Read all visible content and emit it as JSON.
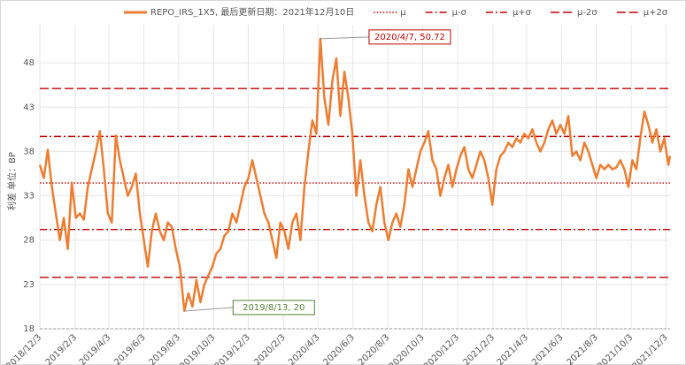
{
  "chart_data": {
    "type": "line",
    "y_label": "利差 单位：BP",
    "xlim": [
      "2018/12/3",
      "2021/12/10"
    ],
    "xticks": [
      "2018/12/3",
      "2019/2/3",
      "2019/4/3",
      "2019/6/3",
      "2019/8/3",
      "2019/10/3",
      "2019/12/3",
      "2020/2/3",
      "2020/4/3",
      "2020/6/3",
      "2020/8/3",
      "2020/10/3",
      "2020/12/3",
      "2021/2/3",
      "2021/4/3",
      "2021/6/3",
      "2021/8/3",
      "2021/10/3",
      "2021/12/3"
    ],
    "ylim": [
      18,
      52.3
    ],
    "yticks": [
      18,
      23,
      28,
      33,
      38,
      43,
      48
    ],
    "grid": true,
    "x": [
      "2018/12/3",
      "2018/12/10",
      "2018/12/17",
      "2018/12/24",
      "2018/12/31",
      "2019/1/7",
      "2019/1/14",
      "2019/1/21",
      "2019/1/28",
      "2019/2/4",
      "2019/2/11",
      "2019/2/18",
      "2019/2/25",
      "2019/3/4",
      "2019/3/11",
      "2019/3/18",
      "2019/3/25",
      "2019/4/1",
      "2019/4/8",
      "2019/4/15",
      "2019/4/22",
      "2019/4/29",
      "2019/5/6",
      "2019/5/13",
      "2019/5/20",
      "2019/5/27",
      "2019/6/3",
      "2019/6/10",
      "2019/6/17",
      "2019/6/24",
      "2019/7/1",
      "2019/7/8",
      "2019/7/15",
      "2019/7/22",
      "2019/7/29",
      "2019/8/5",
      "2019/8/13",
      "2019/8/20",
      "2019/8/27",
      "2019/9/3",
      "2019/9/10",
      "2019/9/17",
      "2019/9/24",
      "2019/10/1",
      "2019/10/8",
      "2019/10/15",
      "2019/10/22",
      "2019/10/29",
      "2019/11/5",
      "2019/11/12",
      "2019/11/19",
      "2019/11/26",
      "2019/12/3",
      "2019/12/10",
      "2019/12/17",
      "2019/12/24",
      "2019/12/31",
      "2020/1/7",
      "2020/1/14",
      "2020/1/21",
      "2020/1/28",
      "2020/2/4",
      "2020/2/11",
      "2020/2/18",
      "2020/2/25",
      "2020/3/3",
      "2020/3/10",
      "2020/3/17",
      "2020/3/24",
      "2020/3/31",
      "2020/4/7",
      "2020/4/14",
      "2020/4/21",
      "2020/4/28",
      "2020/5/5",
      "2020/5/12",
      "2020/5/19",
      "2020/5/26",
      "2020/6/2",
      "2020/6/9",
      "2020/6/16",
      "2020/6/23",
      "2020/6/30",
      "2020/7/7",
      "2020/7/14",
      "2020/7/21",
      "2020/7/28",
      "2020/8/4",
      "2020/8/11",
      "2020/8/18",
      "2020/8/25",
      "2020/9/1",
      "2020/9/8",
      "2020/9/15",
      "2020/9/22",
      "2020/9/29",
      "2020/10/6",
      "2020/10/13",
      "2020/10/20",
      "2020/10/27",
      "2020/11/3",
      "2020/11/10",
      "2020/11/17",
      "2020/11/24",
      "2020/12/1",
      "2020/12/8",
      "2020/12/15",
      "2020/12/22",
      "2020/12/29",
      "2021/1/5",
      "2021/1/12",
      "2021/1/19",
      "2021/1/26",
      "2021/2/2",
      "2021/2/9",
      "2021/2/16",
      "2021/2/23",
      "2021/3/2",
      "2021/3/9",
      "2021/3/16",
      "2021/3/23",
      "2021/3/30",
      "2021/4/6",
      "2021/4/13",
      "2021/4/20",
      "2021/4/27",
      "2021/5/4",
      "2021/5/11",
      "2021/5/18",
      "2021/5/25",
      "2021/6/1",
      "2021/6/8",
      "2021/6/15",
      "2021/6/22",
      "2021/6/29",
      "2021/7/6",
      "2021/7/13",
      "2021/7/20",
      "2021/7/27",
      "2021/8/3",
      "2021/8/10",
      "2021/8/17",
      "2021/8/24",
      "2021/8/31",
      "2021/9/7",
      "2021/9/14",
      "2021/9/21",
      "2021/9/28",
      "2021/10/5",
      "2021/10/12",
      "2021/10/19",
      "2021/10/26",
      "2021/11/2",
      "2021/11/9",
      "2021/11/16",
      "2021/11/23",
      "2021/11/30",
      "2021/12/7",
      "2021/12/10"
    ],
    "series": [
      {
        "name": "REPO_IRS_1X5, 最后更新日期：2021年12月10日",
        "color": "#ed7d31",
        "values": [
          36.5,
          35,
          38.2,
          34,
          31,
          28,
          30.5,
          27,
          34.5,
          30.5,
          31,
          30.3,
          34,
          36,
          38,
          40.3,
          36,
          31,
          30,
          39.8,
          37,
          35,
          33,
          34,
          35.5,
          31,
          28,
          25,
          29,
          31,
          29,
          28,
          30,
          29.5,
          27,
          25,
          20,
          22,
          20.5,
          23.5,
          21,
          23,
          24,
          25,
          26.5,
          27,
          28.5,
          29,
          31,
          30,
          32,
          34,
          35,
          37,
          35,
          33,
          31,
          30,
          28,
          26,
          30,
          29,
          27,
          30,
          31,
          28,
          34,
          38,
          41.5,
          40,
          50.72,
          44,
          41,
          46,
          48.5,
          42,
          47,
          44,
          40,
          33,
          37,
          33,
          30,
          29,
          32,
          34,
          30,
          28,
          30,
          31,
          29.5,
          32,
          36,
          34,
          36,
          38,
          39,
          40.3,
          37,
          36,
          33,
          35,
          36.5,
          34,
          36,
          37.5,
          38.5,
          36,
          35,
          36.5,
          38,
          37,
          35,
          32,
          36,
          37.5,
          38,
          39,
          38.5,
          39.5,
          39,
          40,
          39.5,
          40.5,
          39,
          38,
          39,
          40.5,
          41.5,
          40,
          41,
          40,
          42,
          37.5,
          38,
          37,
          39,
          38,
          36.5,
          35,
          36.5,
          36,
          36.5,
          36,
          36.2,
          37,
          36,
          34,
          37,
          36,
          39.5,
          42.5,
          41,
          39,
          40.5,
          38,
          39.5,
          36.5,
          37.5
        ]
      }
    ],
    "reference_lines": [
      {
        "name": "μ",
        "value": 34.45,
        "color": "#c00000",
        "dash": "1.5,2"
      },
      {
        "name": "μ-σ",
        "value": 29.2,
        "color": "#c00000",
        "dash": "8,3,2,3"
      },
      {
        "name": "μ+σ",
        "value": 39.7,
        "color": "#c00000",
        "dash": "8,3,2,3"
      },
      {
        "name": "μ-2σ",
        "value": 23.8,
        "color": "#c00000",
        "dash": "10,4"
      },
      {
        "name": "μ+2σ",
        "value": 45.1,
        "color": "#c00000",
        "dash": "10,4"
      }
    ],
    "annotations": [
      {
        "text": "2020/4/7, 50.72",
        "x": "2020/4/7",
        "y": 50.72,
        "color": "#c00000"
      },
      {
        "text": "2019/8/13, 20",
        "x": "2019/8/13",
        "y": 20,
        "color": "#548235"
      }
    ]
  }
}
